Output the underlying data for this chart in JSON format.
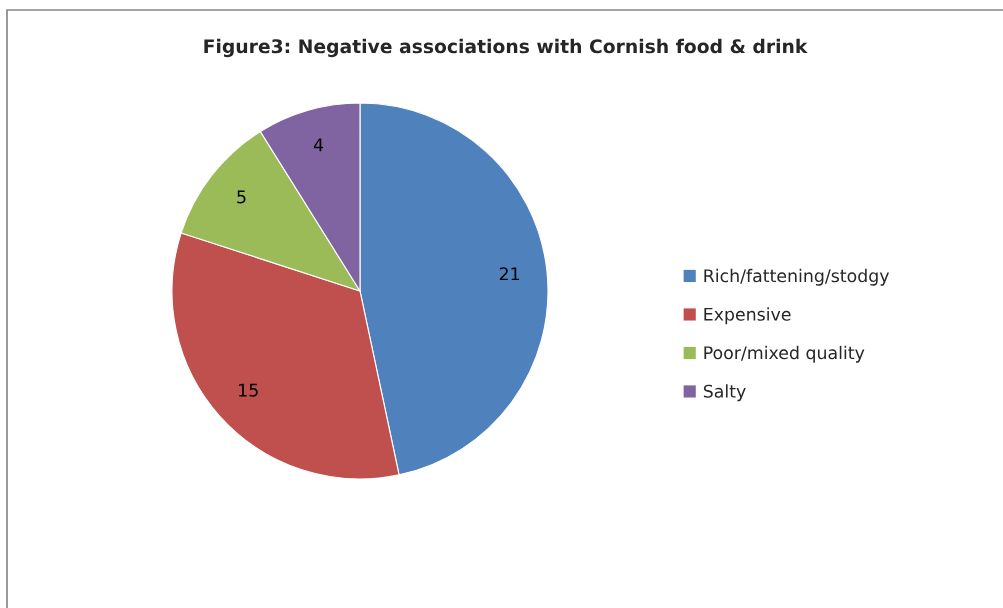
{
  "chart_data": {
    "type": "pie",
    "title": "Figure3: Negative associations with Cornish food & drink",
    "categories": [
      "Rich/fattening/stodgy",
      "Expensive",
      "Poor/mixed quality",
      "Salty"
    ],
    "values": [
      21,
      15,
      5,
      4
    ],
    "colors": [
      "#4f81bd",
      "#c0504d",
      "#9bbb59",
      "#8064a2"
    ],
    "data_labels": true,
    "legend": "right"
  }
}
